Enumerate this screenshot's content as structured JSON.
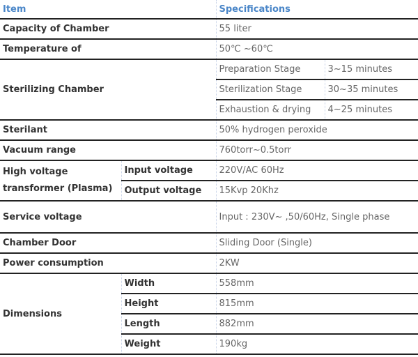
{
  "header": {
    "item": "Item",
    "specifications": "Specifications"
  },
  "rows": {
    "capacity": {
      "label": "Capacity of Chamber",
      "value": "55 liter"
    },
    "temperature": {
      "label": "Temperature of",
      "value": "50℃ ~60℃"
    },
    "sterilizing": {
      "label": "Sterilizing Chamber",
      "stages": [
        {
          "stage": "Preparation Stage",
          "time": "3~15 minutes"
        },
        {
          "stage": "Sterilization Stage",
          "time": "30~35 minutes"
        },
        {
          "stage": "Exhaustion & drying",
          "time": "4~25 minutes"
        }
      ]
    },
    "sterilant": {
      "label": "Sterilant",
      "value": "50% hydrogen peroxide"
    },
    "vacuum": {
      "label": "Vacuum range",
      "value": "760torr~0.5torr"
    },
    "transformer": {
      "label": "High voltage transformer (Plasma)",
      "items": [
        {
          "label": "Input voltage",
          "value": "220V/AC 60Hz"
        },
        {
          "label": "Output voltage",
          "value": "15Kvp 20Khz"
        }
      ]
    },
    "service": {
      "label": "Service voltage",
      "value": "Input : 230V~ ,50/60Hz, Single phase"
    },
    "door": {
      "label": "Chamber Door",
      "value": "Sliding Door (Single)"
    },
    "power": {
      "label": "Power consumption",
      "value": "2KW"
    },
    "dimensions": {
      "label": "Dimensions",
      "items": [
        {
          "label": "Width",
          "value": "558mm"
        },
        {
          "label": "Height",
          "value": "815mm"
        },
        {
          "label": "Length",
          "value": "882mm"
        },
        {
          "label": "Weight",
          "value": "190kg"
        }
      ]
    }
  }
}
